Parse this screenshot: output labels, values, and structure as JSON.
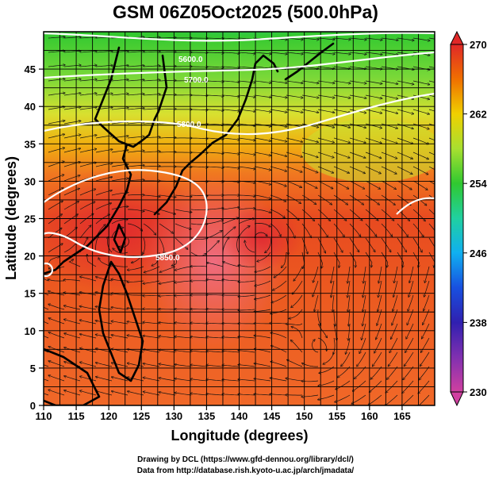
{
  "title": "GSM 06Z05Oct2025 (500.0hPa)",
  "axes": {
    "xlabel": "Longitude (degrees)",
    "ylabel": "Latitude  (degrees)",
    "x_ticks": [
      "110",
      "115",
      "120",
      "125",
      "130",
      "135",
      "140",
      "145",
      "150",
      "155",
      "160",
      "165"
    ],
    "y_ticks": [
      "0",
      "5",
      "10",
      "15",
      "20",
      "25",
      "30",
      "35",
      "40",
      "45"
    ]
  },
  "colorbar": {
    "labels": [
      "270",
      "262",
      "254",
      "246",
      "238",
      "230"
    ],
    "stops": [
      {
        "value": 230,
        "color": "#d040a0"
      },
      {
        "value": 234,
        "color": "#8030b0"
      },
      {
        "value": 238,
        "color": "#3020b0"
      },
      {
        "value": 242,
        "color": "#1850e0"
      },
      {
        "value": 246,
        "color": "#10b0f0"
      },
      {
        "value": 250,
        "color": "#20d0a0"
      },
      {
        "value": 254,
        "color": "#30c830"
      },
      {
        "value": 258,
        "color": "#a8e030"
      },
      {
        "value": 262,
        "color": "#f0d000"
      },
      {
        "value": 266,
        "color": "#f07000"
      },
      {
        "value": 270,
        "color": "#e02828"
      }
    ]
  },
  "contour_labels": [
    "5600.0",
    "5700.0",
    "5800.0",
    "5850.0"
  ],
  "credits": {
    "line1": "Drawing by DCL (https://www.gfd-dennou.org/library/dcl/)",
    "line2": "Data from http://database.rish.kyoto-u.ac.jp/arch/jmadata/"
  }
}
